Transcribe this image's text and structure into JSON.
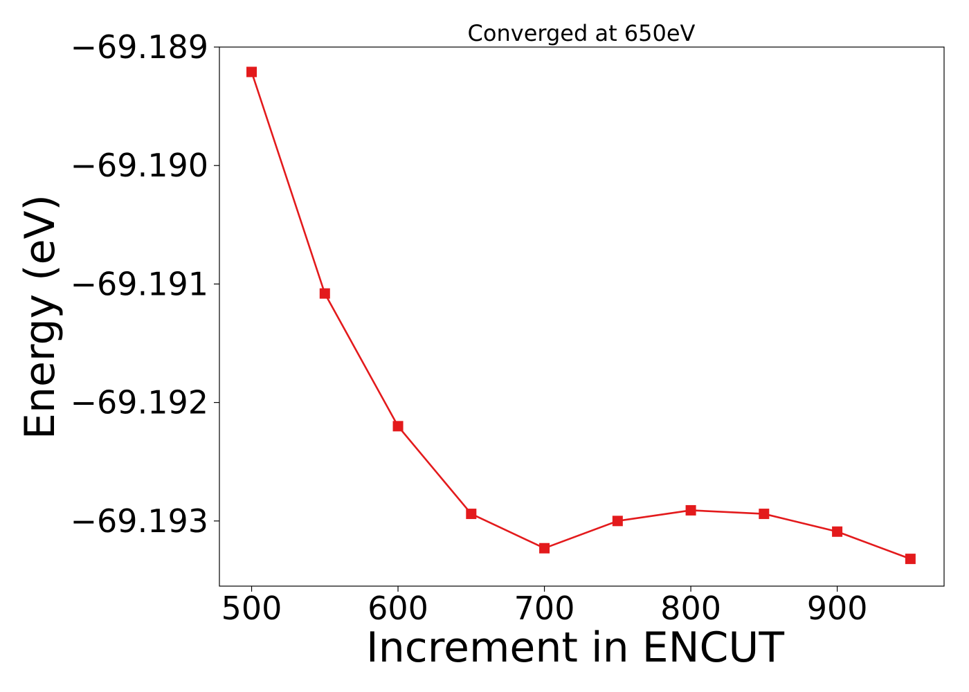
{
  "chart_data": {
    "type": "line",
    "title": "Converged at 650eV",
    "xlabel": "Increment in ENCUT",
    "ylabel": "Energy (eV)",
    "x": [
      500,
      550,
      600,
      650,
      700,
      750,
      800,
      850,
      900,
      950
    ],
    "series": [
      {
        "values": [
          -69.18921,
          -69.19108,
          -69.1922,
          -69.19294,
          -69.19323,
          -69.193,
          -69.19291,
          -69.19294,
          -69.19309,
          -69.19332
        ],
        "color": "#e31a1c",
        "marker": "square"
      }
    ],
    "xlim": [
      478,
      973
    ],
    "ylim": [
      -69.19355,
      -69.189
    ],
    "xticks": [
      500,
      600,
      700,
      800,
      900
    ],
    "xtick_labels": [
      "500",
      "600",
      "700",
      "800",
      "900"
    ],
    "yticks": [
      -69.189,
      -69.19,
      -69.191,
      -69.192,
      -69.193
    ],
    "ytick_labels": [
      "−69.189",
      "−69.190",
      "−69.191",
      "−69.192",
      "−69.193"
    ],
    "grid": false
  }
}
